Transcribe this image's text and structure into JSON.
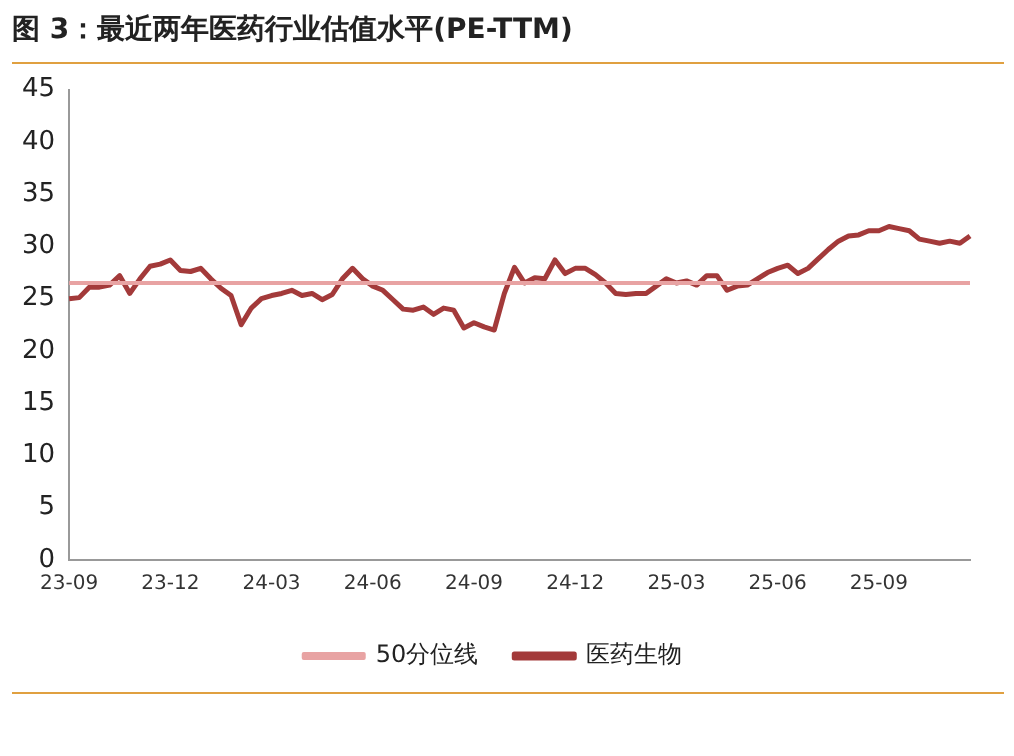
{
  "chart_data": {
    "type": "line",
    "title": "图 3：最近两年医药行业估值水平(PE-TTM)",
    "categories": [
      "23-09",
      null,
      null,
      null,
      null,
      null,
      null,
      null,
      null,
      null,
      "23-12",
      null,
      null,
      null,
      null,
      null,
      null,
      null,
      null,
      null,
      "24-03",
      null,
      null,
      null,
      null,
      null,
      null,
      null,
      null,
      null,
      "24-06",
      null,
      null,
      null,
      null,
      null,
      null,
      null,
      null,
      null,
      "24-09",
      null,
      null,
      null,
      null,
      null,
      null,
      null,
      null,
      null,
      "24-12",
      null,
      null,
      null,
      null,
      null,
      null,
      null,
      null,
      null,
      "25-03",
      null,
      null,
      null,
      null,
      null,
      null,
      null,
      null,
      null,
      "25-06",
      null,
      null,
      null,
      null,
      null,
      null,
      null,
      null,
      null,
      "25-09",
      null,
      null,
      null,
      null,
      null,
      null,
      null,
      null,
      null
    ],
    "series": [
      {
        "name": "50分位线",
        "color": "#e8a3a3",
        "values": [
          26.5,
          26.5,
          26.5,
          26.5,
          26.5,
          26.5,
          26.5,
          26.5,
          26.5,
          26.5,
          26.5,
          26.5,
          26.5,
          26.5,
          26.5,
          26.5,
          26.5,
          26.5,
          26.5,
          26.5,
          26.5,
          26.5,
          26.5,
          26.5,
          26.5,
          26.5,
          26.5,
          26.5,
          26.5,
          26.5,
          26.5,
          26.5,
          26.5,
          26.5,
          26.5,
          26.5,
          26.5,
          26.5,
          26.5,
          26.5,
          26.5,
          26.5,
          26.5,
          26.5,
          26.5,
          26.5,
          26.5,
          26.5,
          26.5,
          26.5,
          26.5,
          26.5,
          26.5,
          26.5,
          26.5,
          26.5,
          26.5,
          26.5,
          26.5,
          26.5,
          26.5,
          26.5,
          26.5,
          26.5,
          26.5,
          26.5,
          26.5,
          26.5,
          26.5,
          26.5,
          26.5,
          26.5,
          26.5,
          26.5,
          26.5,
          26.5,
          26.5,
          26.5,
          26.5,
          26.5,
          26.5,
          26.5,
          26.5,
          26.5,
          26.5,
          26.5,
          26.5,
          26.5,
          26.5,
          26.5
        ]
      },
      {
        "name": "医药生物",
        "color": "#a33a3a",
        "values": [
          25.0,
          25.1,
          26.1,
          26.1,
          26.3,
          27.2,
          25.5,
          26.9,
          28.1,
          28.3,
          28.7,
          27.7,
          27.6,
          27.9,
          26.9,
          26.0,
          25.3,
          22.5,
          24.1,
          25.0,
          25.3,
          25.5,
          25.8,
          25.3,
          25.5,
          24.9,
          25.4,
          26.9,
          27.9,
          26.9,
          26.2,
          25.8,
          24.9,
          24.0,
          23.9,
          24.2,
          23.5,
          24.1,
          23.9,
          22.2,
          22.7,
          22.3,
          22.0,
          25.5,
          28.0,
          26.5,
          27.0,
          26.9,
          28.7,
          27.4,
          27.9,
          27.9,
          27.3,
          26.5,
          25.5,
          25.4,
          25.5,
          25.5,
          26.2,
          26.9,
          26.5,
          26.7,
          26.3,
          27.2,
          27.2,
          25.8,
          26.2,
          26.3,
          26.9,
          27.5,
          27.9,
          28.2,
          27.4,
          27.9,
          28.8,
          29.7,
          30.5,
          31.0,
          31.1,
          31.5,
          31.5,
          31.9,
          31.7,
          31.5,
          30.7,
          30.5,
          30.3,
          30.5,
          30.3,
          31.0
        ]
      }
    ],
    "ylim": [
      0,
      45
    ],
    "yticks": [
      0,
      5,
      10,
      15,
      20,
      25,
      30,
      35,
      40,
      45
    ],
    "grid": false,
    "legend": "bottom",
    "marker": "none",
    "line_style": "solid"
  }
}
